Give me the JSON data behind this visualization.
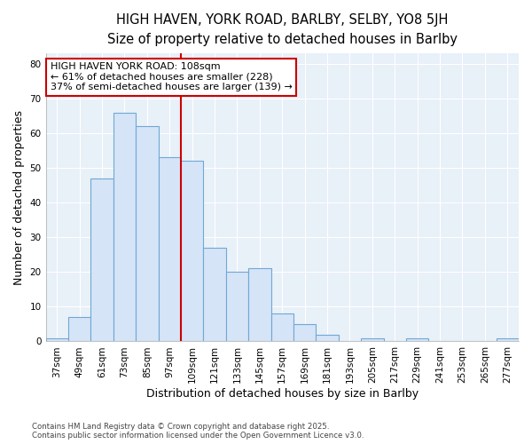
{
  "title1": "HIGH HAVEN, YORK ROAD, BARLBY, SELBY, YO8 5JH",
  "title2": "Size of property relative to detached houses in Barlby",
  "xlabel": "Distribution of detached houses by size in Barlby",
  "ylabel": "Number of detached properties",
  "categories": [
    "37sqm",
    "49sqm",
    "61sqm",
    "73sqm",
    "85sqm",
    "97sqm",
    "109sqm",
    "121sqm",
    "133sqm",
    "145sqm",
    "157sqm",
    "169sqm",
    "181sqm",
    "193sqm",
    "205sqm",
    "217sqm",
    "229sqm",
    "241sqm",
    "253sqm",
    "265sqm",
    "277sqm"
  ],
  "values": [
    1,
    7,
    47,
    66,
    62,
    53,
    52,
    27,
    20,
    21,
    8,
    5,
    2,
    0,
    1,
    0,
    1,
    0,
    0,
    0,
    1
  ],
  "bar_color": "#d6e4f7",
  "bar_edge_color": "#6fa8d4",
  "vline_x_idx": 6,
  "vline_color": "#cc0000",
  "annotation_text": "HIGH HAVEN YORK ROAD: 108sqm\n← 61% of detached houses are smaller (228)\n37% of semi-detached houses are larger (139) →",
  "annotation_box_color": "white",
  "annotation_box_edge": "#cc0000",
  "ylim": [
    0,
    83
  ],
  "yticks": [
    0,
    10,
    20,
    30,
    40,
    50,
    60,
    70,
    80
  ],
  "footer": "Contains HM Land Registry data © Crown copyright and database right 2025.\nContains public sector information licensed under the Open Government Licence v3.0.",
  "background_color": "#ffffff",
  "plot_bg_color": "#e8f0f8",
  "grid_color": "#ffffff",
  "title_fontsize": 10.5,
  "subtitle_fontsize": 9.5,
  "tick_fontsize": 7.5,
  "label_fontsize": 9,
  "annotation_fontsize": 8
}
